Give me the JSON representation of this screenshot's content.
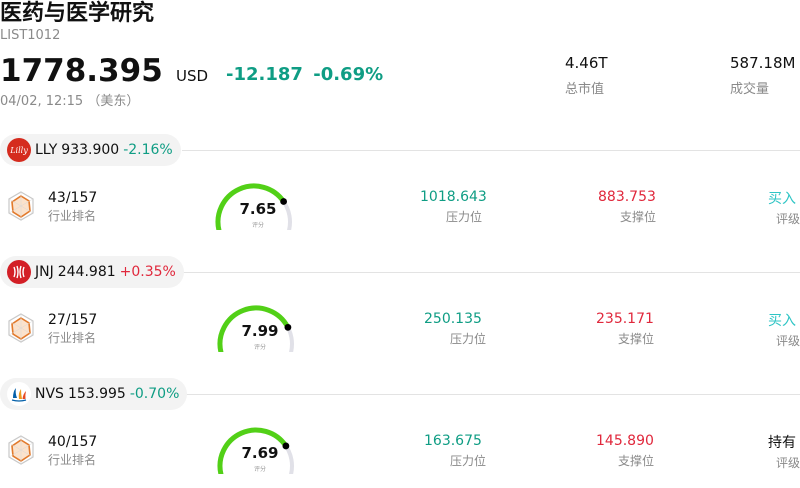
{
  "header": {
    "title": "医药与医学研究",
    "code": "LIST1012",
    "price": "1778.395",
    "currency": "USD",
    "change": "-12.187",
    "change_pct": "-0.69%",
    "timestamp": "04/02, 12:15 （美东）",
    "market_cap_value": "4.46T",
    "market_cap_label": "总市值",
    "volume_value": "587.18M",
    "volume_label": "成交量"
  },
  "colors": {
    "up": "#e0283c",
    "down": "#0f9d84",
    "buy": "#2fc5c5",
    "gauge": "#52d017"
  },
  "stocks": [
    {
      "symbol": "LLY",
      "price": "933.900",
      "change": "-2.16%",
      "direction": "down",
      "logo_icon": "lilly-logo-icon",
      "rank": "43/157",
      "rank_label": "行业排名",
      "score": "7.65",
      "score_label": "评分",
      "score_fraction": 0.765,
      "resistance": "1018.643",
      "resistance_label": "压力位",
      "support": "883.753",
      "support_label": "支撑位",
      "rating": "买入",
      "rating_type": "buy",
      "rating_label": "评级"
    },
    {
      "symbol": "JNJ",
      "price": "244.981",
      "change": "+0.35%",
      "direction": "up",
      "logo_icon": "jnj-logo-icon",
      "rank": "27/157",
      "rank_label": "行业排名",
      "score": "7.99",
      "score_label": "评分",
      "score_fraction": 0.799,
      "resistance": "250.135",
      "resistance_label": "压力位",
      "support": "235.171",
      "support_label": "支撑位",
      "rating": "买入",
      "rating_type": "buy",
      "rating_label": "评级"
    },
    {
      "symbol": "NVS",
      "price": "153.995",
      "change": "-0.70%",
      "direction": "down",
      "logo_icon": "novartis-logo-icon",
      "rank": "40/157",
      "rank_label": "行业排名",
      "score": "7.69",
      "score_label": "评分",
      "score_fraction": 0.769,
      "resistance": "163.675",
      "resistance_label": "压力位",
      "support": "145.890",
      "support_label": "支撑位",
      "rating": "持有",
      "rating_type": "hold",
      "rating_label": "评级"
    }
  ]
}
